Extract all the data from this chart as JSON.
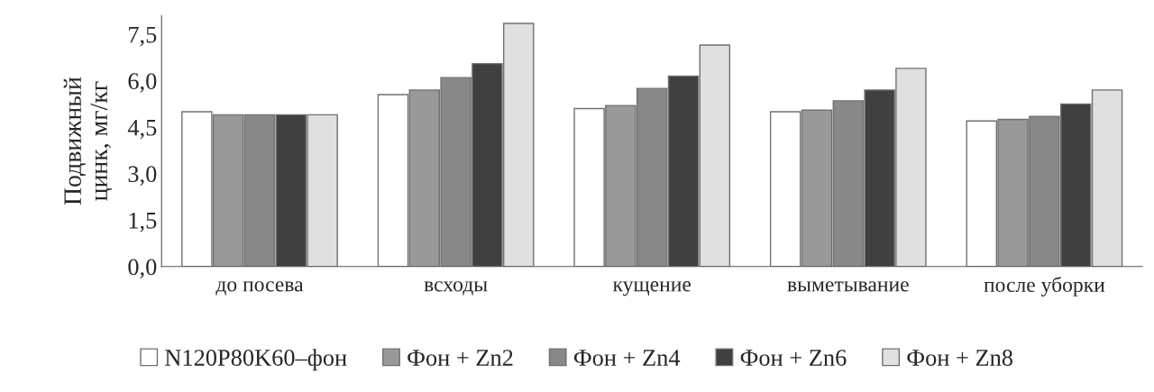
{
  "chart_data": {
    "type": "bar",
    "ylabel": "Подвижный\nцинк, мг/кг",
    "categories": [
      "до посева",
      "всходы",
      "кущение",
      "выметывание",
      "после уборки"
    ],
    "series": [
      {
        "name": "N120P80K60–фон",
        "color": "#ffffff",
        "values": [
          5.0,
          5.55,
          5.1,
          5.0,
          4.7
        ]
      },
      {
        "name": "Фон + Zn2",
        "color": "#999999",
        "values": [
          4.9,
          5.7,
          5.2,
          5.05,
          4.75
        ]
      },
      {
        "name": "Фон + Zn4",
        "color": "#888888",
        "values": [
          4.9,
          6.1,
          5.75,
          5.35,
          4.85
        ]
      },
      {
        "name": "Фон + Zn6",
        "color": "#404040",
        "values": [
          4.9,
          6.55,
          6.15,
          5.7,
          5.25
        ]
      },
      {
        "name": "Фон + Zn8",
        "color": "#e0e0e0",
        "values": [
          4.9,
          7.85,
          7.15,
          6.4,
          5.7
        ]
      }
    ],
    "ylim": [
      0,
      8.1
    ],
    "yticks": [
      {
        "value": 0,
        "label": "0,0"
      },
      {
        "value": 1.5,
        "label": "1,5"
      },
      {
        "value": 3,
        "label": "3,0"
      },
      {
        "value": 4.5,
        "label": "4,5"
      },
      {
        "value": 6,
        "label": "6,0"
      },
      {
        "value": 7.5,
        "label": "7,5"
      }
    ],
    "grid": false,
    "legend": "bottom"
  }
}
